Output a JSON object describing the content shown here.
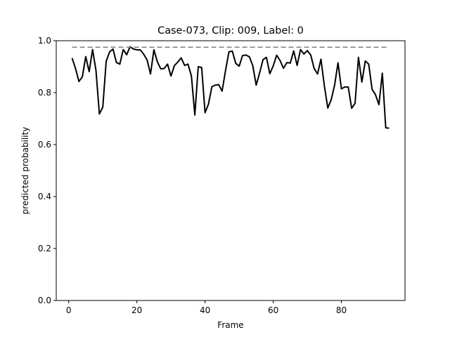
{
  "chart_data": {
    "type": "line",
    "title": "Case-073, Clip: 009, Label: 0",
    "xlabel": "Frame",
    "ylabel": "predicted probability",
    "xlim": [
      -3.65,
      98.65
    ],
    "ylim": [
      0.0,
      1.0
    ],
    "xticks": [
      "0",
      "20",
      "40",
      "60",
      "80"
    ],
    "xtick_values": [
      0,
      20,
      40,
      60,
      80
    ],
    "yticks": [
      "0.0",
      "0.2",
      "0.4",
      "0.6",
      "0.8",
      "1.0"
    ],
    "ytick_values": [
      0.0,
      0.2,
      0.4,
      0.6,
      0.8,
      1.0
    ],
    "grid": false,
    "series": [
      {
        "color": "#000000",
        "style": "solid",
        "x": [
          1,
          2,
          3,
          4,
          5,
          6,
          7,
          8,
          9,
          10,
          11,
          12,
          13,
          14,
          15,
          16,
          17,
          18,
          19,
          20,
          21,
          22,
          23,
          24,
          25,
          26,
          27,
          28,
          29,
          30,
          31,
          32,
          33,
          34,
          35,
          36,
          37,
          38,
          39,
          40,
          41,
          42,
          43,
          44,
          45,
          46,
          47,
          48,
          49,
          50,
          51,
          52,
          53,
          54,
          55,
          56,
          57,
          58,
          59,
          60,
          61,
          62,
          63,
          64,
          65,
          66,
          67,
          68,
          69,
          70,
          71,
          72,
          73,
          74,
          75,
          76,
          77,
          78,
          79,
          80,
          81,
          82,
          83,
          84,
          85,
          86,
          87,
          88,
          89,
          90,
          91,
          92,
          93,
          94
        ],
        "values": [
          0.933,
          0.893,
          0.843,
          0.861,
          0.939,
          0.881,
          0.966,
          0.886,
          0.718,
          0.744,
          0.921,
          0.957,
          0.968,
          0.916,
          0.91,
          0.966,
          0.946,
          0.977,
          0.968,
          0.965,
          0.965,
          0.948,
          0.926,
          0.872,
          0.965,
          0.919,
          0.892,
          0.893,
          0.91,
          0.864,
          0.904,
          0.918,
          0.934,
          0.905,
          0.91,
          0.864,
          0.714,
          0.9,
          0.897,
          0.723,
          0.756,
          0.823,
          0.829,
          0.831,
          0.806,
          0.885,
          0.957,
          0.96,
          0.913,
          0.902,
          0.943,
          0.945,
          0.938,
          0.904,
          0.829,
          0.876,
          0.927,
          0.936,
          0.873,
          0.903,
          0.944,
          0.924,
          0.894,
          0.916,
          0.914,
          0.961,
          0.905,
          0.966,
          0.949,
          0.962,
          0.945,
          0.893,
          0.872,
          0.929,
          0.826,
          0.741,
          0.773,
          0.829,
          0.915,
          0.815,
          0.822,
          0.822,
          0.74,
          0.759,
          0.936,
          0.841,
          0.922,
          0.91,
          0.813,
          0.792,
          0.754,
          0.875,
          0.665,
          0.663
        ]
      },
      {
        "color": "#7f7f7f",
        "style": "dashed",
        "x": [
          1,
          94
        ],
        "values": [
          0.975,
          0.975
        ]
      }
    ]
  }
}
